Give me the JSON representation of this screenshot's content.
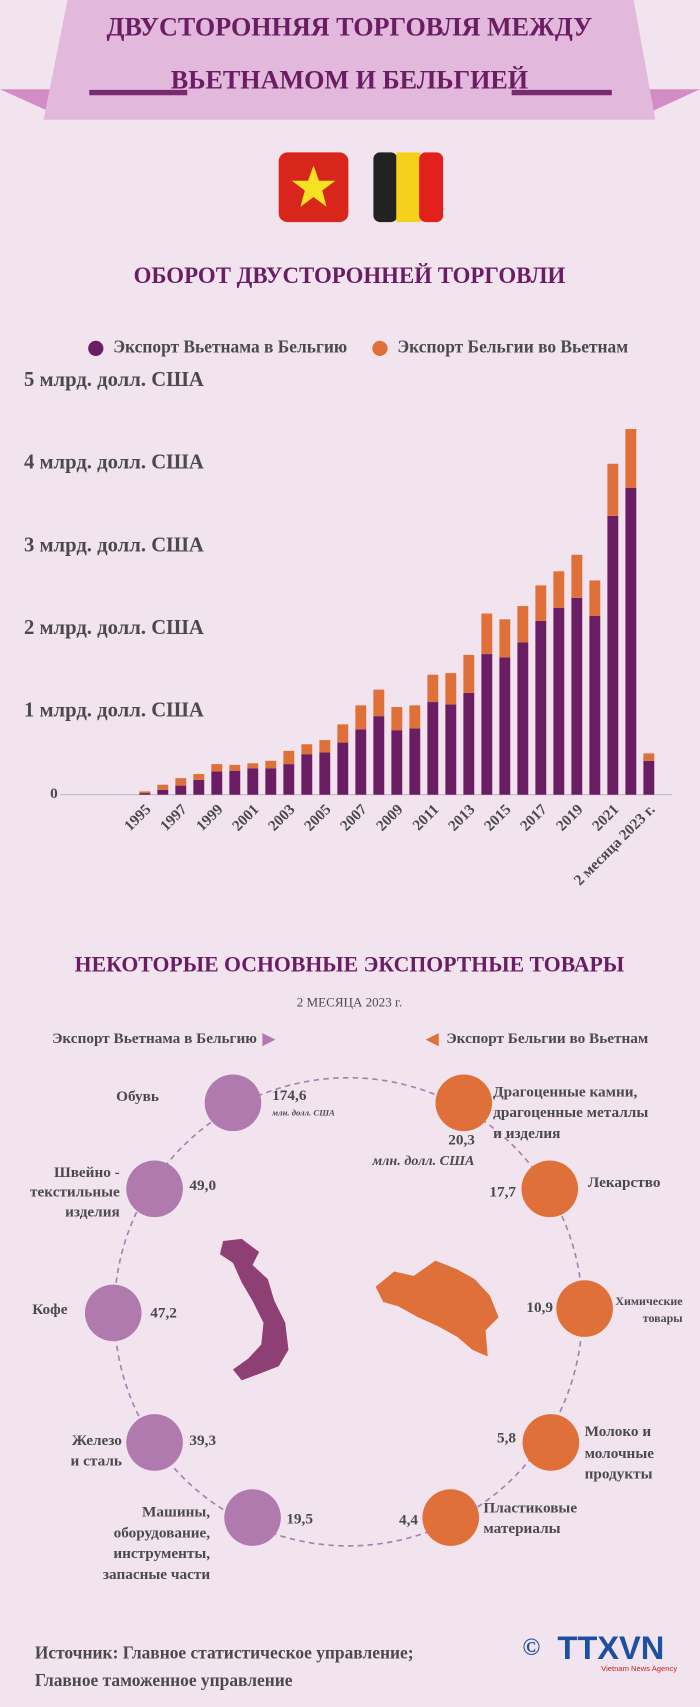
{
  "header": {
    "title_lines": [
      "ДВУСТОРОННЯЯ ТОРГОВЛЯ МЕЖДУ",
      "ВЬЕТНАМОМ И БЕЛЬГИЕЙ"
    ]
  },
  "chart_data": {
    "type": "bar",
    "stacked": true,
    "title": "ОБОРОТ ДВУСТОРОННЕЙ ТОРГОВЛИ",
    "categories": [
      "1995",
      null,
      "1997",
      null,
      "1999",
      null,
      "2001",
      null,
      "2003",
      null,
      "2005",
      null,
      "2007",
      null,
      "2009",
      null,
      "2011",
      null,
      "2013",
      null,
      "2015",
      null,
      "2017",
      null,
      "2019",
      null,
      "2021",
      null,
      "2 месяца 2023 г."
    ],
    "series": [
      {
        "name": "Экспорт Вьетнама в Бельгию",
        "color": "#6b1d63",
        "values": [
          0.02,
          0.06,
          0.11,
          0.18,
          0.28,
          0.29,
          0.32,
          0.32,
          0.37,
          0.49,
          0.51,
          0.63,
          0.79,
          0.95,
          0.78,
          0.8,
          1.12,
          1.09,
          1.23,
          1.7,
          1.66,
          1.84,
          2.1,
          2.26,
          2.38,
          2.16,
          3.37,
          3.71,
          0.41
        ]
      },
      {
        "name": "Экспорт Бельгии во Вьетнам",
        "color": "#e0703a",
        "values": [
          0.02,
          0.06,
          0.09,
          0.07,
          0.09,
          0.07,
          0.06,
          0.09,
          0.16,
          0.12,
          0.15,
          0.22,
          0.29,
          0.32,
          0.28,
          0.28,
          0.33,
          0.38,
          0.46,
          0.49,
          0.46,
          0.44,
          0.43,
          0.44,
          0.52,
          0.43,
          0.63,
          0.71,
          0.09
        ]
      }
    ],
    "ylim": [
      0,
      5
    ],
    "yticks": [
      0,
      {
        "value": 1,
        "label": "1 млрд. долл. США"
      },
      {
        "value": 2,
        "label": "2 млрд. долл. США"
      },
      {
        "value": 3,
        "label": "3 млрд. долл. США"
      },
      {
        "value": 4,
        "label": "4 млрд. долл. США"
      },
      {
        "value": 5,
        "label": "5 млрд. долл. США"
      }
    ],
    "grid": false
  },
  "products": {
    "title": "НЕКОТОРЫЕ ОСНОВНЫЕ ЭКСПОРТНЫЕ ТОВАРЫ",
    "subtitle": "2 МЕСЯЦА 2023 г.",
    "left_header": "Экспорт Вьетнама в Бельгию",
    "right_header": "Экспорт Бельгии во Вьетнам",
    "unit_left": "млн. долл. США",
    "unit_right": "млн. долл. США",
    "left": [
      {
        "name_lines": [
          "Обувь"
        ],
        "value": "174,6"
      },
      {
        "name_lines": [
          "Швейно -",
          "текстильные",
          "изделия"
        ],
        "value": "49,0"
      },
      {
        "name_lines": [
          "Кофе"
        ],
        "value": "47,2"
      },
      {
        "name_lines": [
          "Железо",
          "и сталь"
        ],
        "value": "39,3"
      },
      {
        "name_lines": [
          "Машины,",
          "оборудование,",
          "инструменты,",
          "запасные части"
        ],
        "value": "19,5"
      }
    ],
    "right": [
      {
        "name_lines": [
          "Драгоценные камни,",
          "драгоценные металлы",
          "и изделия"
        ],
        "value": "20,3"
      },
      {
        "name_lines": [
          "Лекарство"
        ],
        "value": "17,7"
      },
      {
        "name_lines": [
          "Химические",
          "товары"
        ],
        "value": "10,9"
      },
      {
        "name_lines": [
          "Молоко и",
          "молочные",
          "продукты"
        ],
        "value": "5,8"
      },
      {
        "name_lines": [
          "Пластиковые",
          "материалы"
        ],
        "value": "4,4"
      }
    ]
  },
  "source": {
    "lines": [
      "Источник: Главное статистическое управление;",
      "Главное таможенное управление"
    ]
  },
  "logo": {
    "copyright": "©",
    "name": "TTXVN",
    "agency": "Vietnam News Agency"
  }
}
